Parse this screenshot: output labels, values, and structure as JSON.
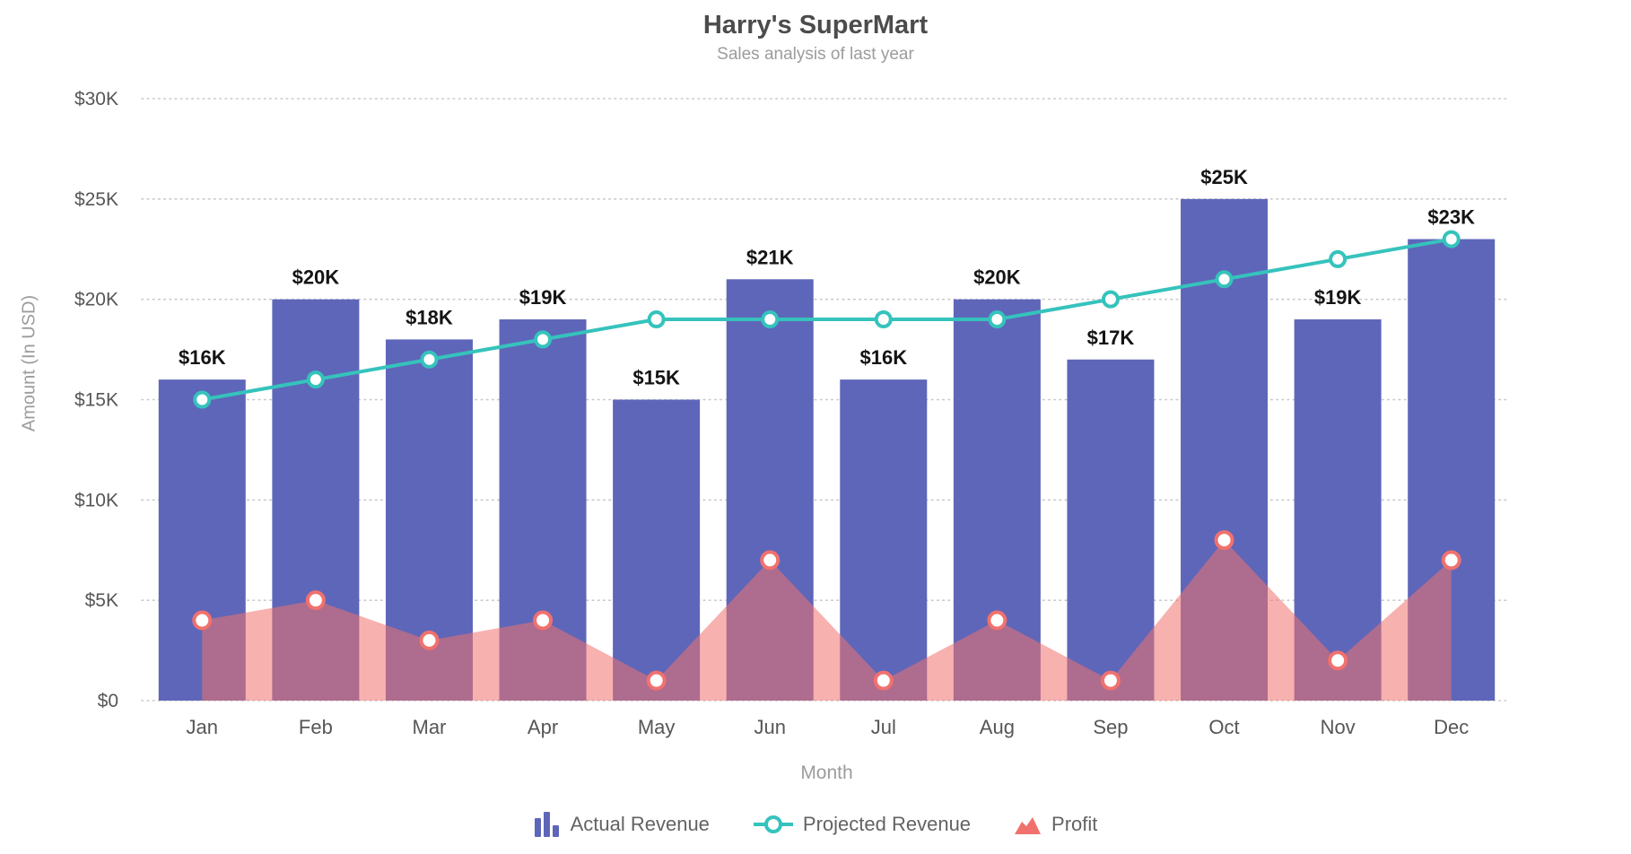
{
  "chart": {
    "title": "Harry's SuperMart",
    "subtitle": "Sales analysis of last year",
    "x_axis_title": "Month",
    "y_axis_title": "Amount (In USD)"
  },
  "legend": {
    "items": [
      {
        "label": "Actual Revenue",
        "icon": "bar-series-icon",
        "color": "#5e66b9"
      },
      {
        "label": "Projected Revenue",
        "icon": "line-series-icon",
        "color": "#35c3bc"
      },
      {
        "label": "Profit",
        "icon": "area-series-icon",
        "color": "#f0716e"
      }
    ]
  },
  "chart_data": {
    "type": "combo: bar + line + area",
    "title": "Harry's SuperMart",
    "subtitle": "Sales analysis of last year",
    "xlabel": "Month",
    "ylabel": "Amount (In USD)",
    "categories": [
      "Jan",
      "Feb",
      "Mar",
      "Apr",
      "May",
      "Jun",
      "Jul",
      "Aug",
      "Sep",
      "Oct",
      "Nov",
      "Dec"
    ],
    "series": [
      {
        "name": "Actual Revenue",
        "type": "bar",
        "color": "#5e66b9",
        "values_usd": [
          16000,
          20000,
          18000,
          19000,
          15000,
          21000,
          16000,
          20000,
          17000,
          25000,
          19000,
          23000
        ],
        "data_labels": [
          "$16K",
          "$20K",
          "$18K",
          "$19K",
          "$15K",
          "$21K",
          "$16K",
          "$20K",
          "$17K",
          "$25K",
          "$19K",
          "$23K"
        ]
      },
      {
        "name": "Projected Revenue",
        "type": "line",
        "color": "#35c3bc",
        "marker": "hollow-circle",
        "values_usd": [
          15000,
          16000,
          17000,
          18000,
          19000,
          19000,
          19000,
          19000,
          20000,
          21000,
          22000,
          23000
        ]
      },
      {
        "name": "Profit",
        "type": "area",
        "color": "#f0716e",
        "fill_opacity": 0.55,
        "marker": "hollow-circle",
        "values_usd": [
          4000,
          5000,
          3000,
          4000,
          1000,
          7000,
          1000,
          4000,
          1000,
          8000,
          2000,
          7000
        ]
      }
    ],
    "ylim": [
      0,
      30000
    ],
    "y_tick_step": 5000,
    "y_ticks": [
      "$0",
      "$5K",
      "$10K",
      "$15K",
      "$20K",
      "$25K",
      "$30K"
    ],
    "grid": "horizontal dotted",
    "legend_position": "bottom"
  },
  "colors": {
    "bar": "#5e66b9",
    "line": "#35c3bc",
    "area": "#f0716e",
    "grid": "#c9c9c9",
    "title_text": "#4c4c4c",
    "subtitle_text": "#9c9c9c",
    "tick_text": "#565656",
    "axis_title_text": "#9c9c9c",
    "data_label_text": "#141414",
    "legend_text": "#636363"
  }
}
